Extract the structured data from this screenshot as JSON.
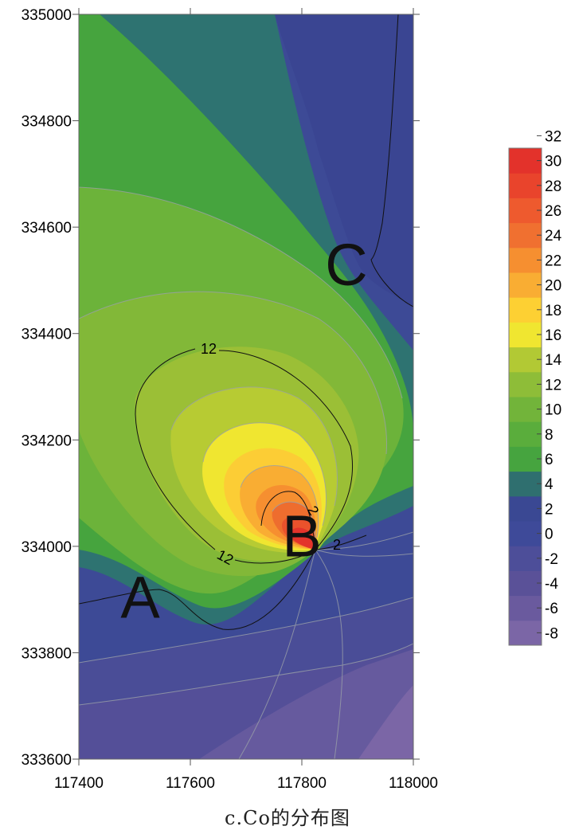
{
  "chart_data": {
    "type": "heatmap",
    "title": "",
    "xlabel": "",
    "ylabel": "",
    "xlim": [
      117400,
      118000
    ],
    "ylim": [
      333600,
      335000
    ],
    "x_ticks": [
      "117400",
      "117600",
      "117800",
      "118000"
    ],
    "y_ticks": [
      "333600",
      "333800",
      "334000",
      "334200",
      "334400",
      "334600",
      "334800",
      "335000"
    ],
    "grid": false,
    "legend_placement": "right",
    "color_levels": [
      -8,
      -6,
      -4,
      -2,
      0,
      2,
      4,
      6,
      8,
      10,
      12,
      14,
      16,
      18,
      20,
      22,
      24,
      26,
      28,
      30,
      32
    ],
    "color_bar_labels": [
      "-8",
      "-6",
      "-4",
      "-2",
      "0",
      "2",
      "4",
      "6",
      "8",
      "10",
      "12",
      "14",
      "16",
      "18",
      "20",
      "22",
      "24",
      "26",
      "28",
      "30",
      "32"
    ],
    "colors": [
      "#7b66a6",
      "#6a5a9e",
      "#5a5198",
      "#4d4e99",
      "#3e4a99",
      "#3a4893",
      "#2f6f6f",
      "#46a43f",
      "#5aad3c",
      "#72b43a",
      "#8ebd38",
      "#b2c934",
      "#f0e630",
      "#fdd033",
      "#f9ad33",
      "#f68f30",
      "#f07030",
      "#ee5a2e",
      "#e9442c",
      "#e3322b"
    ],
    "contour_labels": [
      "12",
      "12",
      "2",
      "2"
    ],
    "point_labels": [
      {
        "text": "A",
        "x": 117510,
        "y": 333905
      },
      {
        "text": "B",
        "x": 117800,
        "y": 334020
      },
      {
        "text": "C",
        "x": 117880,
        "y": 334530
      }
    ],
    "caption": "c.Co的分布图"
  }
}
